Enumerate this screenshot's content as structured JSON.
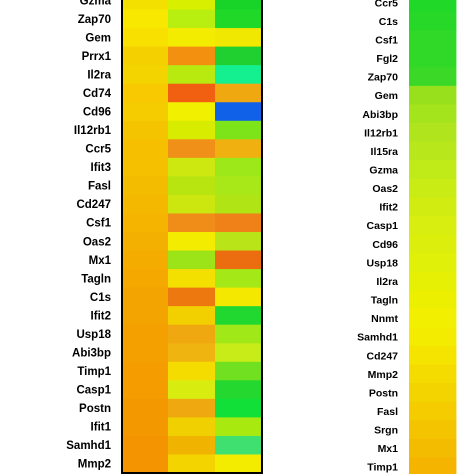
{
  "chart_data": [
    {
      "type": "heatmap",
      "rows": [
        "Gzma",
        "Zap70",
        "Gem",
        "Prrx1",
        "Il2ra",
        "Cd74",
        "Cd96",
        "Il12rb1",
        "Ccr5",
        "Ifit3",
        "Fasl",
        "Cd247",
        "Csf1",
        "Oas2",
        "Mx1",
        "Tagln",
        "C1s",
        "Ifit2",
        "Usp18",
        "Abi3bp",
        "Timp1",
        "Casp1",
        "Postn",
        "Ifit1",
        "Samhd1",
        "Mmp2"
      ],
      "columns": 3,
      "cells": [
        [
          "#f4e000",
          "#d8f000",
          "#18d428"
        ],
        [
          "#f8e800",
          "#b8ee10",
          "#20d828"
        ],
        [
          "#f8e000",
          "#f4ec00",
          "#f0e800"
        ],
        [
          "#f4d000",
          "#f39010",
          "#20d030"
        ],
        [
          "#f4d400",
          "#b8ea10",
          "#14f090"
        ],
        [
          "#f8c800",
          "#f06010",
          "#f0a810"
        ],
        [
          "#f4cc00",
          "#f0f000",
          "#1060e8"
        ],
        [
          "#f4c400",
          "#d8ec00",
          "#7ce418"
        ],
        [
          "#f6c000",
          "#f09018",
          "#f0b010"
        ],
        [
          "#f4c000",
          "#cce810",
          "#9ce818"
        ],
        [
          "#f4bc00",
          "#b8e410",
          "#a8e818"
        ],
        [
          "#f4b800",
          "#cce610",
          "#b0e414"
        ],
        [
          "#f4b400",
          "#f08c18",
          "#f08018"
        ],
        [
          "#f4b000",
          "#f4ec00",
          "#b8e418"
        ],
        [
          "#f4ac00",
          "#9ce418",
          "#ec6c10"
        ],
        [
          "#f4a800",
          "#f4e000",
          "#a4e818"
        ],
        [
          "#f4a400",
          "#ee7810",
          "#f4e800"
        ],
        [
          "#f4a400",
          "#f2d000",
          "#20d830"
        ],
        [
          "#f4a000",
          "#f0a810",
          "#a0e818"
        ],
        [
          "#f4a000",
          "#f0b410",
          "#c8ec18"
        ],
        [
          "#f49c00",
          "#f4dc00",
          "#70e020"
        ],
        [
          "#f49c00",
          "#d8ec10",
          "#24d830"
        ],
        [
          "#f49800",
          "#f0a810",
          "#10e038"
        ],
        [
          "#f49800",
          "#f0d000",
          "#a8ea10"
        ],
        [
          "#f49400",
          "#f0b400",
          "#40e070"
        ],
        [
          "#f49400",
          "#f4d400",
          "#f4ec00"
        ]
      ]
    },
    {
      "type": "heatmap",
      "rows": [
        "Ccr5",
        "C1s",
        "Csf1",
        "Fgl2",
        "Zap70",
        "Gem",
        "Abi3bp",
        "Il12rb1",
        "Il15ra",
        "Gzma",
        "Oas2",
        "Ifit2",
        "Casp1",
        "Cd96",
        "Usp18",
        "Il2ra",
        "Tagln",
        "Nnmt",
        "Samhd1",
        "Cd247",
        "Mmp2",
        "Postn",
        "Fasl",
        "Srgn",
        "Mx1",
        "Timp1"
      ],
      "columns": 1,
      "cells": [
        [
          "#20d828"
        ],
        [
          "#28d828"
        ],
        [
          "#30d828"
        ],
        [
          "#30d828"
        ],
        [
          "#3cd828"
        ],
        [
          "#98e01c"
        ],
        [
          "#a4e41c"
        ],
        [
          "#b0e41c"
        ],
        [
          "#b8e81c"
        ],
        [
          "#c0ea18"
        ],
        [
          "#c8ec14"
        ],
        [
          "#d0ec10"
        ],
        [
          "#d8ee10"
        ],
        [
          "#dcee0c"
        ],
        [
          "#e0f008"
        ],
        [
          "#e6f004"
        ],
        [
          "#ecf000"
        ],
        [
          "#f2f000"
        ],
        [
          "#f4ec00"
        ],
        [
          "#f4e400"
        ],
        [
          "#f4dc00"
        ],
        [
          "#f4d400"
        ],
        [
          "#f4cc00"
        ],
        [
          "#f4c400"
        ],
        [
          "#f4bc00"
        ],
        [
          "#f4b400"
        ]
      ]
    }
  ]
}
